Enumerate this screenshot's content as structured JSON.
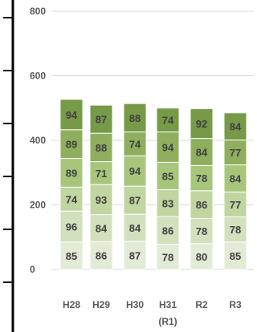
{
  "chart_data": {
    "type": "bar",
    "stacked": true,
    "categories": [
      "H28",
      "H29",
      "H30",
      "H31",
      "R2",
      "R3"
    ],
    "category_sublabels": [
      "",
      "",
      "",
      "(R1)",
      "",
      ""
    ],
    "series": [
      {
        "values": [
          85,
          86,
          87,
          78,
          80,
          85
        ],
        "color": "#e2ebd5"
      },
      {
        "values": [
          96,
          84,
          84,
          86,
          78,
          78
        ],
        "color": "#d2e0bd"
      },
      {
        "values": [
          74,
          93,
          87,
          83,
          86,
          77
        ],
        "color": "#c0d5a0"
      },
      {
        "values": [
          89,
          71,
          94,
          85,
          78,
          84
        ],
        "color": "#a7c67c"
      },
      {
        "values": [
          89,
          88,
          74,
          94,
          84,
          77
        ],
        "color": "#8fae5e"
      },
      {
        "values": [
          94,
          87,
          88,
          74,
          92,
          84
        ],
        "color": "#769a48"
      }
    ],
    "yticks": [
      "0",
      "200",
      "400",
      "600",
      "800"
    ],
    "ylim": [
      0,
      800
    ],
    "grid": true,
    "grid_color": "#d9d9d9"
  }
}
